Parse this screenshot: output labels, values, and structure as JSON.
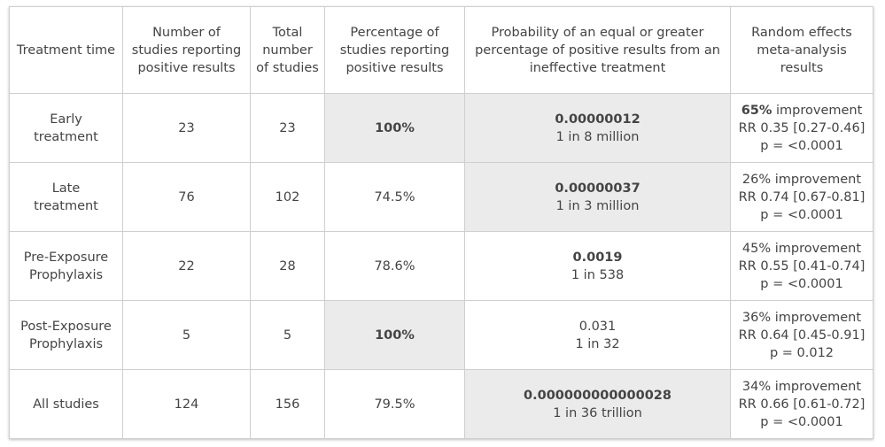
{
  "table": {
    "header": [
      "Treatment time",
      "Number of studies reporting positive results",
      "Total number of studies",
      "Percentage of studies reporting positive results",
      "Probability of an equal or greater percentage of positive results from an ineffective treatment",
      "Random effects meta-analysis results"
    ],
    "improvement_word": "improvement",
    "rows": [
      {
        "time": [
          "Early",
          "treatment"
        ],
        "positive": "23",
        "total": "23",
        "percentage": "100%",
        "probability": "0.00000012",
        "odds": "1 in 8 million",
        "improvement": "65%",
        "rr": "RR 0.35 [0.27-0.46]",
        "p": "p = <0.0001"
      },
      {
        "time": [
          "Late",
          "treatment"
        ],
        "positive": "76",
        "total": "102",
        "percentage": "74.5%",
        "probability": "0.00000037",
        "odds": "1 in 3 million",
        "improvement": "26%",
        "rr": "RR 0.74 [0.67-0.81]",
        "p": "p = <0.0001"
      },
      {
        "time": [
          "Pre-Exposure",
          "Prophylaxis"
        ],
        "positive": "22",
        "total": "28",
        "percentage": "78.6%",
        "probability": "0.0019",
        "odds": "1 in 538",
        "improvement": "45%",
        "rr": "RR 0.55 [0.41-0.74]",
        "p": "p = <0.0001"
      },
      {
        "time": [
          "Post-Exposure",
          "Prophylaxis"
        ],
        "positive": "5",
        "total": "5",
        "percentage": "100%",
        "probability": "0.031",
        "odds": "1 in 32",
        "improvement": "36%",
        "rr": "RR 0.64 [0.45-0.91]",
        "p": "p = 0.012"
      },
      {
        "time": [
          "All studies"
        ],
        "positive": "124",
        "total": "156",
        "percentage": "79.5%",
        "probability": "0.000000000000028",
        "odds": "1 in 36 trillion",
        "improvement": "34%",
        "rr": "RR 0.66 [0.61-0.72]",
        "p": "p = <0.0001"
      }
    ]
  }
}
